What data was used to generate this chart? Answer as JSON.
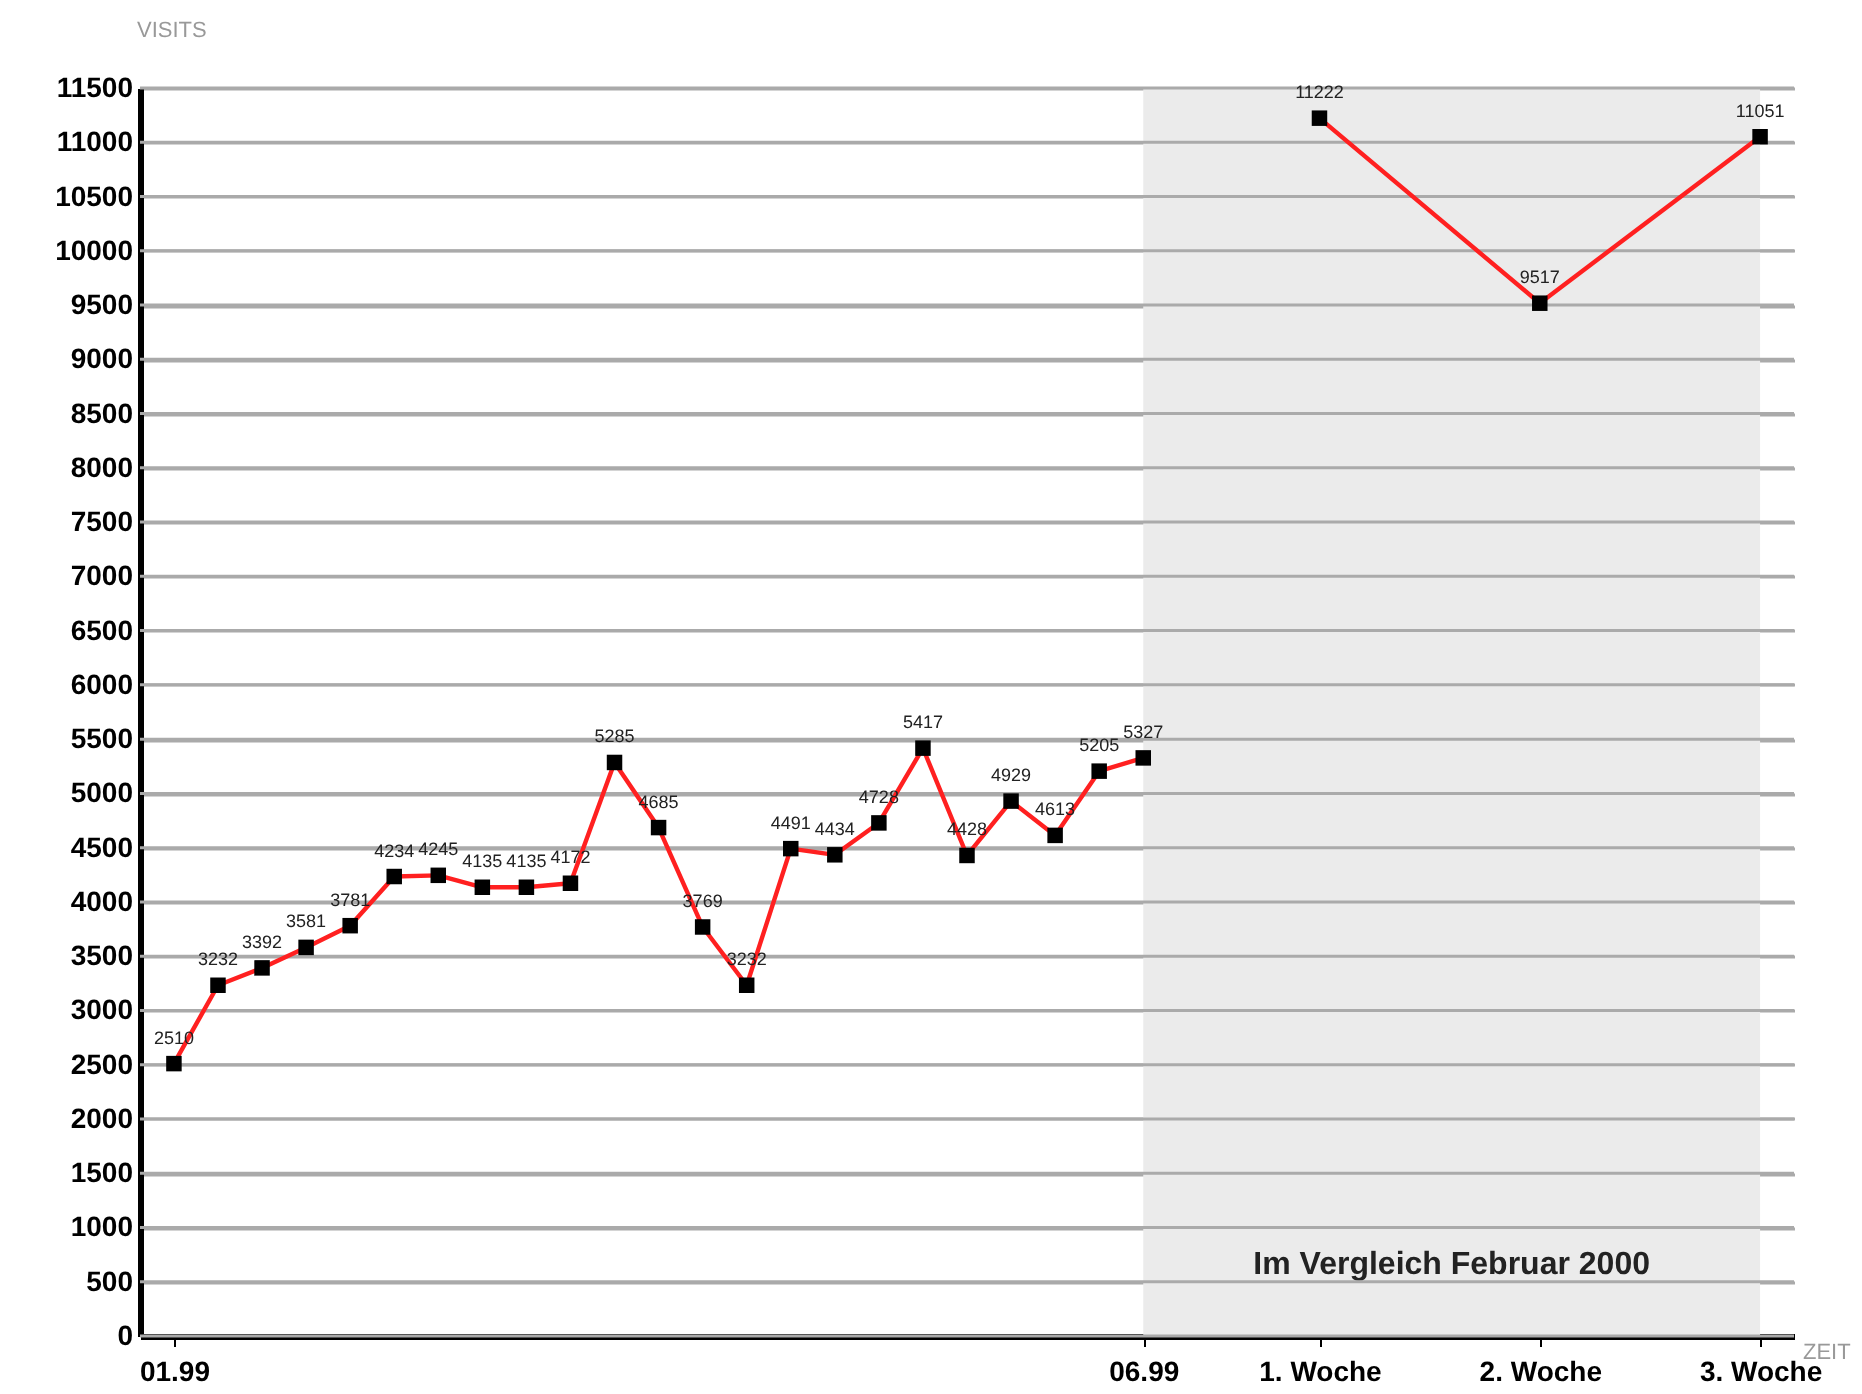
{
  "chart_data": {
    "type": "line",
    "xlabel": "ZEIT",
    "ylabel": "VISITS",
    "categories": [
      "01.99",
      null,
      null,
      null,
      null,
      null,
      null,
      null,
      null,
      null,
      null,
      null,
      null,
      null,
      null,
      null,
      null,
      null,
      null,
      null,
      null,
      null,
      "06.99",
      null,
      null,
      null,
      "1. Woche",
      null,
      null,
      null,
      null,
      "2. Woche",
      null,
      null,
      null,
      null,
      "3. Woche"
    ],
    "ylim": [
      0,
      11500
    ],
    "yticks": [
      0,
      500,
      1000,
      1500,
      2000,
      2500,
      3000,
      3500,
      4000,
      4500,
      5000,
      5500,
      6000,
      6500,
      7000,
      7500,
      8000,
      8500,
      9000,
      9500,
      10000,
      10500,
      11000,
      11500
    ],
    "series": [
      {
        "color": "#ff2020",
        "values": [
          2510,
          3232,
          3392,
          3581,
          3781,
          4234,
          4245,
          4135,
          4135,
          4172,
          5285,
          4685,
          3769,
          3232,
          4491,
          4434,
          4728,
          5417,
          4428,
          4929,
          4613,
          5205,
          5327,
          null,
          null,
          null,
          null,
          null,
          null,
          null,
          null,
          null,
          null,
          null,
          null,
          null,
          null
        ]
      },
      {
        "color": "#ff2020",
        "values": [
          null,
          null,
          null,
          null,
          null,
          null,
          null,
          null,
          null,
          null,
          null,
          null,
          null,
          null,
          null,
          null,
          null,
          null,
          null,
          null,
          null,
          null,
          null,
          null,
          null,
          null,
          11222,
          null,
          null,
          null,
          null,
          9517,
          null,
          null,
          null,
          null,
          11051
        ]
      }
    ],
    "bands": [
      {
        "axis": "x",
        "from": "06.99",
        "to": "3. Woche",
        "label": "Im Vergleich Februar 2000",
        "color": "#ebebeb"
      }
    ],
    "marker": "square",
    "data_labels": true,
    "grid": "y"
  }
}
